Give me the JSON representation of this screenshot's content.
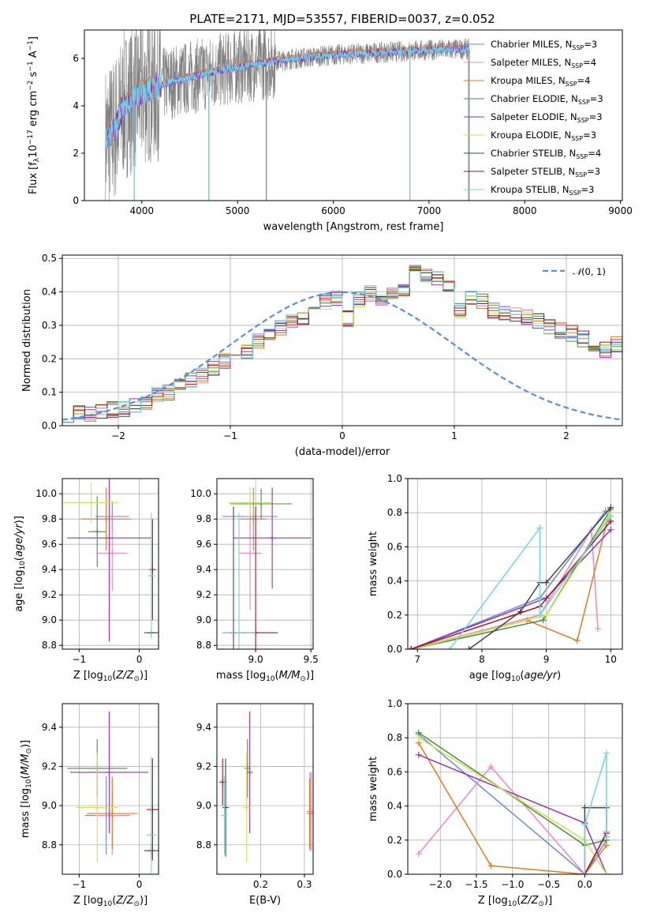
{
  "figure_title": "PLATE=2171, MJD=53557, FIBERID=0037, z=0.052",
  "colors": {
    "Chabrier MILES": "#6688dd",
    "Salpeter MILES": "#e589c0",
    "Kroupa MILES": "#e07b22",
    "Chabrier ELODIE": "#4e8c43",
    "Salpeter ELODIE": "#9932b0",
    "Kroupa ELODIE": "#c8e650",
    "Chabrier STELIB": "#444444",
    "Salpeter STELIB": "#a01818",
    "Kroupa STELIB": "#79d0df",
    "data": "#808080",
    "gaussian": "#5b8fd8"
  },
  "chart_data": [
    {
      "id": "spectrum",
      "type": "line",
      "xlabel": "wavelength [Angstrom, rest frame]",
      "ylabel": "Flux [f",
      "xlim": [
        3400,
        9020
      ],
      "ylim": [
        0,
        7.2
      ],
      "xticks": [
        4000,
        5000,
        6000,
        7000,
        8000,
        9000
      ],
      "yticks": [
        0,
        2,
        4,
        6
      ],
      "legend_position": "right",
      "legend": [
        {
          "name": "Chabrier MILES",
          "nssp": "3"
        },
        {
          "name": "Salpeter MILES",
          "nssp": "4"
        },
        {
          "name": "Kroupa MILES",
          "nssp": "4"
        },
        {
          "name": "Chabrier ELODIE",
          "nssp": "3"
        },
        {
          "name": "Salpeter ELODIE",
          "nssp": "3"
        },
        {
          "name": "Kroupa ELODIE",
          "nssp": "3"
        },
        {
          "name": "Chabrier STELIB",
          "nssp": "4"
        },
        {
          "name": "Salpeter STELIB",
          "nssp": "3"
        },
        {
          "name": "Kroupa STELIB",
          "nssp": "3"
        }
      ],
      "data_range": [
        3620,
        7420
      ],
      "model_continuum": {
        "x": [
          3620,
          3700,
          3760,
          3800,
          3900,
          4000,
          4300,
          4600,
          5000,
          5500,
          6000,
          6500,
          7000,
          7420
        ],
        "y": [
          2.6,
          2.9,
          3.4,
          4.0,
          4.3,
          4.6,
          5.0,
          5.3,
          5.65,
          5.95,
          6.15,
          6.25,
          6.35,
          6.4
        ]
      },
      "dropouts": [
        4700,
        5300,
        6800,
        7420,
        3920
      ]
    },
    {
      "id": "residuals",
      "type": "line",
      "xlabel": "(data-model)/error",
      "ylabel": "Normed distribution",
      "xlim": [
        -2.5,
        2.5
      ],
      "ylim": [
        0,
        0.51
      ],
      "xticks": [
        -2,
        -1,
        0,
        1,
        2
      ],
      "yticks": [
        0,
        0.1,
        0.2,
        0.3,
        0.4,
        0.5
      ],
      "grid": true,
      "legend_position": "top-right",
      "legend_label": "N(0,1)",
      "bin_width": 0.1,
      "bin_start": -2.5,
      "base": [
        0.035,
        0.035,
        0.038,
        0.042,
        0.048,
        0.052,
        0.058,
        0.068,
        0.09,
        0.098,
        0.12,
        0.135,
        0.15,
        0.175,
        0.195,
        0.21,
        0.225,
        0.255,
        0.27,
        0.295,
        0.31,
        0.325,
        0.35,
        0.37,
        0.385,
        0.32,
        0.375,
        0.395,
        0.385,
        0.395,
        0.4,
        0.455,
        0.445,
        0.445,
        0.41,
        0.345,
        0.38,
        0.37,
        0.345,
        0.335,
        0.33,
        0.325,
        0.31,
        0.295,
        0.285,
        0.275,
        0.26,
        0.23,
        0.225,
        0.245,
        0.205,
        0.18,
        0.165,
        0.15,
        0.12,
        0.1,
        0.09,
        0.08,
        0.075,
        0.07,
        0.065,
        0.06,
        0.055,
        0.048,
        0.04,
        0.035
      ]
    },
    {
      "id": "age_vs_Z",
      "type": "scatter",
      "xlabel": "Z [log",
      "ylabel": "age  [log",
      "xlim": [
        -1.28,
        0.32
      ],
      "ylim": [
        8.77,
        10.12
      ],
      "xticks": [
        -1,
        0
      ],
      "yticks": [
        8.8,
        9.0,
        9.2,
        9.4,
        9.6,
        9.8,
        10.0
      ],
      "points": [
        {
          "model": "Chabrier MILES",
          "x": -0.45,
          "xerr": 0.28,
          "y": 9.82,
          "yerr": 0.12
        },
        {
          "model": "Salpeter MILES",
          "x": -0.45,
          "xerr": 0.25,
          "y": 9.53,
          "yerr": 0.3
        },
        {
          "model": "Kroupa MILES",
          "x": -0.55,
          "xerr": 0.42,
          "y": 9.8,
          "yerr": 0.25
        },
        {
          "model": "Chabrier ELODIE",
          "x": -0.7,
          "xerr": 0.15,
          "y": 9.7,
          "yerr": 0.28
        },
        {
          "model": "Salpeter ELODIE",
          "x": -0.5,
          "xerr": 0.7,
          "y": 9.65,
          "yerr": 0.82
        },
        {
          "model": "Kroupa ELODIE",
          "x": -0.8,
          "xerr": 0.45,
          "y": 9.93,
          "yerr": 0.16
        },
        {
          "model": "Chabrier STELIB",
          "x": 0.2,
          "xerr": 0.12,
          "y": 8.9,
          "yerr": 0.0
        },
        {
          "model": "Salpeter STELIB",
          "x": 0.22,
          "xerr": 0.0,
          "y": 9.4,
          "yerr": 0.4
        },
        {
          "model": "Kroupa STELIB",
          "x": 0.2,
          "xerr": 0.05,
          "y": 9.35,
          "yerr": 0.5
        }
      ]
    },
    {
      "id": "age_vs_mass",
      "type": "scatter",
      "xlabel": "mass [log",
      "ylabel": "",
      "xlim": [
        8.65,
        9.52
      ],
      "ylim": [
        8.77,
        10.12
      ],
      "xticks": [
        9.0,
        9.5
      ],
      "yticks": [
        8.8,
        9.0,
        9.2,
        9.4,
        9.6,
        9.8,
        10.0
      ],
      "points": [
        {
          "model": "Chabrier MILES",
          "x": 8.95,
          "xerr": 0.25,
          "y": 9.82,
          "yerr": 0.1
        },
        {
          "model": "Salpeter MILES",
          "x": 8.95,
          "xerr": 0.1,
          "y": 9.53,
          "yerr": 0.45
        },
        {
          "model": "Kroupa MILES",
          "x": 8.98,
          "xerr": 0.12,
          "y": 9.8,
          "yerr": 0.25
        },
        {
          "model": "Chabrier ELODIE",
          "x": 9.05,
          "xerr": 0.28,
          "y": 9.92,
          "yerr": 0.12
        },
        {
          "model": "Salpeter ELODIE",
          "x": 9.15,
          "xerr": 0.35,
          "y": 9.65,
          "yerr": 0.4
        },
        {
          "model": "Kroupa ELODIE",
          "x": 8.95,
          "xerr": 0.2,
          "y": 9.93,
          "yerr": 0.12
        },
        {
          "model": "Chabrier STELIB",
          "x": 8.8,
          "xerr": 0.1,
          "y": 8.9,
          "yerr": 1.0
        },
        {
          "model": "Salpeter STELIB",
          "x": 9.0,
          "xerr": 0.2,
          "y": 8.9,
          "yerr": 1.0
        },
        {
          "model": "Kroupa STELIB",
          "x": 8.85,
          "xerr": 0.15,
          "y": 8.9,
          "yerr": 0.95
        }
      ]
    },
    {
      "id": "massweight_vs_age",
      "type": "line",
      "xlabel": "age  [log",
      "ylabel": "mass weight",
      "xlim": [
        6.85,
        10.18
      ],
      "ylim": [
        0,
        1
      ],
      "xticks": [
        7,
        8,
        9,
        10
      ],
      "yticks": [
        0,
        0.2,
        0.4,
        0.6,
        0.8,
        1.0
      ],
      "grid": true,
      "series": [
        {
          "model": "Chabrier MILES",
          "x": [
            6.9,
            8.9,
            9.92
          ],
          "y": [
            0.0,
            0.3,
            0.81
          ]
        },
        {
          "model": "Salpeter MILES",
          "x": [
            6.9,
            8.9,
            9.7,
            9.8
          ],
          "y": [
            0.0,
            0.2,
            0.7,
            0.12
          ]
        },
        {
          "model": "Kroupa MILES",
          "x": [
            6.9,
            8.7,
            9.48,
            9.95
          ],
          "y": [
            0.0,
            0.17,
            0.05,
            0.76
          ]
        },
        {
          "model": "Chabrier ELODIE",
          "x": [
            6.9,
            8.95,
            10.0
          ],
          "y": [
            0.0,
            0.17,
            0.82
          ]
        },
        {
          "model": "Salpeter ELODIE",
          "x": [
            6.9,
            9.0,
            10.0
          ],
          "y": [
            0.0,
            0.3,
            0.7
          ]
        },
        {
          "model": "Kroupa ELODIE",
          "x": [
            6.9,
            9.0,
            10.0
          ],
          "y": [
            0.0,
            0.2,
            0.8
          ]
        },
        {
          "model": "Chabrier STELIB",
          "x": [
            7.8,
            8.6,
            8.9,
            9.0,
            10.0
          ],
          "y": [
            0.0,
            0.22,
            0.39,
            0.39,
            0.83
          ]
        },
        {
          "model": "Salpeter STELIB",
          "x": [
            6.9,
            8.9,
            10.0
          ],
          "y": [
            0.0,
            0.25,
            0.75
          ]
        },
        {
          "model": "Kroupa STELIB",
          "x": [
            7.5,
            8.9,
            8.9,
            8.9,
            10.0
          ],
          "y": [
            0.0,
            0.71,
            0.71,
            0.2,
            0.78
          ]
        }
      ]
    },
    {
      "id": "mass_vs_Z",
      "type": "scatter",
      "xlabel": "Z [log",
      "ylabel": "mass [log",
      "xlim": [
        -1.28,
        0.32
      ],
      "ylim": [
        8.65,
        9.52
      ],
      "xticks": [
        -1,
        0
      ],
      "yticks": [
        8.8,
        9.0,
        9.2,
        9.4
      ],
      "points": [
        {
          "model": "Chabrier MILES",
          "x": -0.55,
          "xerr": 0.35,
          "y": 8.95,
          "yerr": 0.2
        },
        {
          "model": "Salpeter MILES",
          "x": -0.45,
          "xerr": 0.3,
          "y": 8.95,
          "yerr": 0.2
        },
        {
          "model": "Kroupa MILES",
          "x": -0.45,
          "xerr": 0.42,
          "y": 8.96,
          "yerr": 0.18
        },
        {
          "model": "Chabrier ELODIE",
          "x": -0.7,
          "xerr": 0.5,
          "y": 9.19,
          "yerr": 0.15
        },
        {
          "model": "Salpeter ELODIE",
          "x": -0.5,
          "xerr": 0.65,
          "y": 9.17,
          "yerr": 0.31
        },
        {
          "model": "Kroupa ELODIE",
          "x": -0.7,
          "xerr": 0.35,
          "y": 8.99,
          "yerr": 0.28
        },
        {
          "model": "Chabrier STELIB",
          "x": 0.2,
          "xerr": 0.12,
          "y": 8.77,
          "yerr": 0.04
        },
        {
          "model": "Salpeter STELIB",
          "x": 0.22,
          "xerr": 0.1,
          "y": 8.98,
          "yerr": 0.26
        },
        {
          "model": "Kroupa STELIB",
          "x": 0.2,
          "xerr": 0.08,
          "y": 8.85,
          "yerr": 0.4
        }
      ]
    },
    {
      "id": "mass_vs_ebv",
      "type": "scatter",
      "xlabel": "E(B-V)",
      "ylabel": "",
      "xlim": [
        0.1,
        0.32
      ],
      "ylim": [
        8.65,
        9.52
      ],
      "xticks": [
        0.2,
        0.3
      ],
      "yticks": [
        8.8,
        9.0,
        9.2,
        9.4
      ],
      "points": [
        {
          "model": "Chabrier MILES",
          "x": 0.313,
          "y": 8.97,
          "yerr": 0.2
        },
        {
          "model": "Salpeter MILES",
          "x": 0.316,
          "y": 8.97,
          "yerr": 0.2
        },
        {
          "model": "Kroupa MILES",
          "x": 0.312,
          "y": 8.96,
          "yerr": 0.18
        },
        {
          "model": "Chabrier ELODIE",
          "x": 0.17,
          "y": 9.19,
          "yerr": 0.15
        },
        {
          "model": "Salpeter ELODIE",
          "x": 0.175,
          "y": 9.17,
          "yerr": 0.31
        },
        {
          "model": "Kroupa ELODIE",
          "x": 0.168,
          "y": 8.99,
          "yerr": 0.28
        },
        {
          "model": "Chabrier STELIB",
          "x": 0.12,
          "y": 8.99,
          "yerr": 0.25
        },
        {
          "model": "Salpeter STELIB",
          "x": 0.113,
          "y": 9.12,
          "yerr": 0.12
        },
        {
          "model": "Kroupa STELIB",
          "x": 0.117,
          "y": 8.95,
          "yerr": 0.2
        }
      ]
    },
    {
      "id": "massweight_vs_Z",
      "type": "line",
      "xlabel": "Z [log",
      "ylabel": "mass weight",
      "xlim": [
        -2.45,
        0.52
      ],
      "ylim": [
        0,
        1
      ],
      "xticks": [
        -2.0,
        -1.5,
        -1.0,
        -0.5,
        0.0
      ],
      "yticks": [
        0,
        0.2,
        0.4,
        0.6,
        0.8,
        1.0
      ],
      "grid": true,
      "series": [
        {
          "model": "Chabrier MILES",
          "x": [
            -2.3,
            0.0,
            0.3
          ],
          "y": [
            0.82,
            0.0,
            0.2
          ]
        },
        {
          "model": "Salpeter MILES",
          "x": [
            -2.3,
            -1.3,
            0.0,
            0.3
          ],
          "y": [
            0.12,
            0.63,
            0.0,
            0.25
          ]
        },
        {
          "model": "Kroupa MILES",
          "x": [
            -2.3,
            -1.3,
            0.0,
            0.3
          ],
          "y": [
            0.77,
            0.05,
            0.0,
            0.17
          ]
        },
        {
          "model": "Chabrier ELODIE",
          "x": [
            -2.3,
            0.0,
            0.3
          ],
          "y": [
            0.83,
            0.17,
            0.2
          ]
        },
        {
          "model": "Salpeter ELODIE",
          "x": [
            -2.3,
            0.0,
            0.3
          ],
          "y": [
            0.7,
            0.3,
            0.0
          ]
        },
        {
          "model": "Kroupa ELODIE",
          "x": [
            -2.3,
            0.0,
            0.3
          ],
          "y": [
            0.8,
            0.2,
            0.0
          ]
        },
        {
          "model": "Chabrier STELIB",
          "x": [
            0.0,
            0.0,
            0.3,
            0.3
          ],
          "y": [
            0.0,
            0.39,
            0.39,
            0.22
          ]
        },
        {
          "model": "Salpeter STELIB",
          "x": [
            0.0,
            0.3
          ],
          "y": [
            0.0,
            0.24
          ]
        },
        {
          "model": "Kroupa STELIB",
          "x": [
            0.0,
            0.0,
            0.3,
            0.3
          ],
          "y": [
            0.0,
            0.29,
            0.71,
            0.22
          ]
        }
      ]
    }
  ]
}
